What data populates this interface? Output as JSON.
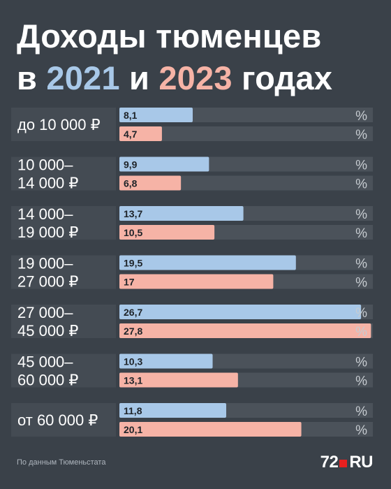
{
  "header": {
    "title_line1": "Доходы тюменцев",
    "title_line2_prefix": "в ",
    "year1": "2021",
    "conj": " и ",
    "year2": "2023",
    "title_line2_suffix": " годах"
  },
  "colors": {
    "background": "#3a4149",
    "track": "#4b525a",
    "label_bg": "#444b53",
    "series_2021": "#a8c8e8",
    "series_2023": "#f6b3a6"
  },
  "chart_data": {
    "type": "bar",
    "orientation": "horizontal",
    "categories": [
      [
        "до 10 000 ₽"
      ],
      [
        "10 000–",
        "14 000 ₽"
      ],
      [
        "14 000–",
        "19 000 ₽"
      ],
      [
        "19 000–",
        "27 000 ₽"
      ],
      [
        "27 000–",
        "45 000 ₽"
      ],
      [
        "45 000–",
        "60 000 ₽"
      ],
      [
        "от 60 000 ₽"
      ]
    ],
    "series": [
      {
        "name": "2021",
        "values": [
          8.1,
          9.9,
          13.7,
          19.5,
          26.7,
          10.3,
          11.8
        ],
        "labels": [
          "8,1",
          "9,9",
          "13,7",
          "19,5",
          "26,7",
          "10,3",
          "11,8"
        ]
      },
      {
        "name": "2023",
        "values": [
          4.7,
          6.8,
          10.5,
          17,
          27.8,
          13.1,
          20.1
        ],
        "labels": [
          "4,7",
          "6,8",
          "10,5",
          "17",
          "27,8",
          "13,1",
          "20,1"
        ]
      }
    ],
    "unit": "%",
    "xlim": [
      0,
      28
    ]
  },
  "footer": {
    "source": "По данным Тюменьстата",
    "logo_left": "72",
    "logo_right": "RU"
  }
}
